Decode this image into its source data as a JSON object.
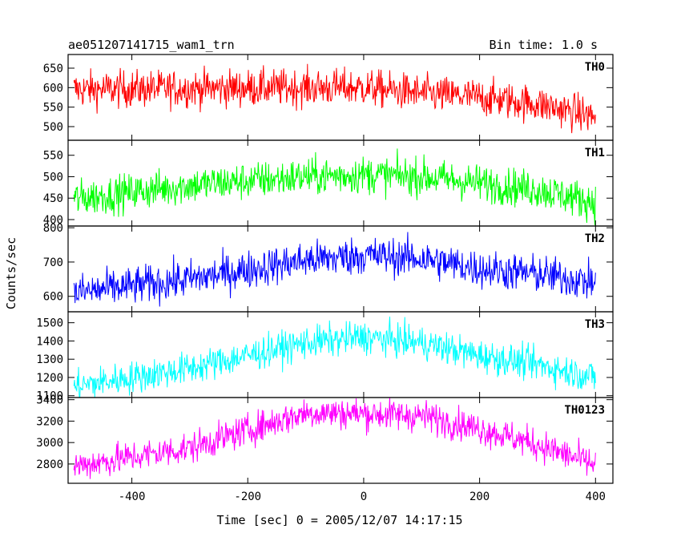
{
  "chart_data": {
    "type": "line",
    "title": "ae051207141715_wam1_trn",
    "subtitle": "Bin time: 1.0 s",
    "xlabel": "Time [sec] 0 = 2005/12/07 14:17:15",
    "ylabel": "Counts/sec",
    "xlim": [
      -510,
      430
    ],
    "xticks": [
      -400,
      -200,
      0,
      200,
      400
    ],
    "x_range": [
      -500,
      400
    ],
    "grid": false,
    "panels": [
      {
        "name": "TH0",
        "color": "#ff0000",
        "ylim": [
          465,
          685
        ],
        "yticks": [
          500,
          550,
          600,
          650
        ],
        "baseline": [
          [
            -500,
            595
          ],
          [
            -300,
            598
          ],
          [
            -100,
            600
          ],
          [
            0,
            600
          ],
          [
            100,
            585
          ],
          [
            200,
            575
          ],
          [
            300,
            558
          ],
          [
            400,
            525
          ]
        ],
        "noise": 24
      },
      {
        "name": "TH1",
        "color": "#00ff00",
        "ylim": [
          385,
          585
        ],
        "yticks": [
          400,
          450,
          500,
          550
        ],
        "baseline": [
          [
            -500,
            448
          ],
          [
            -300,
            480
          ],
          [
            -100,
            500
          ],
          [
            0,
            505
          ],
          [
            100,
            500
          ],
          [
            200,
            485
          ],
          [
            300,
            470
          ],
          [
            400,
            440
          ]
        ],
        "noise": 22
      },
      {
        "name": "TH2",
        "color": "#0000ff",
        "ylim": [
          555,
          805
        ],
        "yticks": [
          600,
          700,
          800
        ],
        "baseline": [
          [
            -500,
            610
          ],
          [
            -300,
            650
          ],
          [
            -100,
            705
          ],
          [
            0,
            720
          ],
          [
            100,
            710
          ],
          [
            200,
            680
          ],
          [
            300,
            665
          ],
          [
            400,
            640
          ]
        ],
        "noise": 28
      },
      {
        "name": "TH3",
        "color": "#00ffff",
        "ylim": [
          1090,
          1560
        ],
        "yticks": [
          1100,
          1200,
          1300,
          1400,
          1500
        ],
        "baseline": [
          [
            -500,
            1150
          ],
          [
            -300,
            1250
          ],
          [
            -100,
            1390
          ],
          [
            0,
            1420
          ],
          [
            100,
            1390
          ],
          [
            200,
            1320
          ],
          [
            300,
            1270
          ],
          [
            400,
            1200
          ]
        ],
        "noise": 45
      },
      {
        "name": "TH0123",
        "color": "#ff00ff",
        "ylim": [
          2620,
          3420
        ],
        "yticks": [
          2800,
          3000,
          3200,
          3400
        ],
        "baseline": [
          [
            -500,
            2780
          ],
          [
            -300,
            2950
          ],
          [
            -100,
            3280
          ],
          [
            0,
            3270
          ],
          [
            100,
            3250
          ],
          [
            200,
            3130
          ],
          [
            300,
            2980
          ],
          [
            400,
            2790
          ]
        ],
        "noise": 75
      }
    ]
  }
}
